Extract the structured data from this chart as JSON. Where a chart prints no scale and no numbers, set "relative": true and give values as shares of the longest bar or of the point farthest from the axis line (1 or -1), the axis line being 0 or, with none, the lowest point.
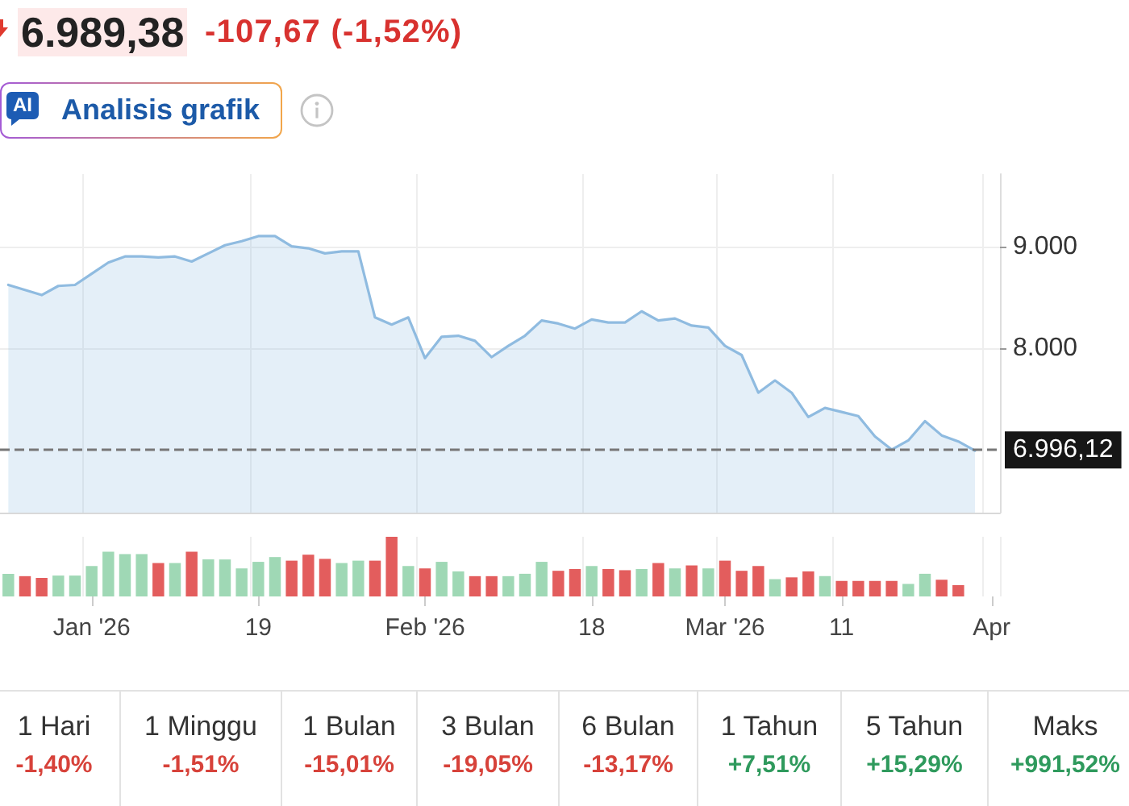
{
  "chart_data": [
    {
      "type": "area",
      "title": "6.989,38",
      "subtitle": "-107,67 (-1,52%)",
      "annotations": [
        "AI",
        "Analisis grafik"
      ],
      "categories": [
        null,
        null,
        null,
        null,
        null,
        "Jan '26",
        null,
        null,
        null,
        null,
        null,
        null,
        null,
        null,
        null,
        "19",
        null,
        null,
        null,
        null,
        null,
        null,
        null,
        null,
        null,
        "Feb '26",
        null,
        null,
        null,
        null,
        null,
        null,
        null,
        null,
        null,
        "18",
        null,
        null,
        null,
        null,
        null,
        null,
        null,
        "Mar '26",
        null,
        null,
        null,
        null,
        null,
        null,
        "11",
        null,
        null,
        null,
        null,
        null,
        null,
        null,
        null,
        "Apr"
      ],
      "series": [
        {
          "color": "#8fbbe0",
          "values": [
            8620,
            8570,
            8520,
            8610,
            8620,
            8730,
            8840,
            8900,
            8900,
            8890,
            8900,
            8850,
            8930,
            9010,
            9050,
            9100,
            9100,
            9000,
            8980,
            8930,
            8950,
            8950,
            8300,
            8230,
            8300,
            7900,
            8110,
            8120,
            8070,
            7910,
            8020,
            8120,
            8270,
            8240,
            8190,
            8280,
            8250,
            8250,
            8360,
            8270,
            8290,
            8220,
            8200,
            8020,
            7930,
            7560,
            7680,
            7560,
            7320,
            7410,
            7370,
            7330,
            7130,
            7000,
            7090,
            7280,
            7140,
            7080,
            6990,
            null
          ]
        }
      ],
      "ylim": [
        6380,
        9710
      ],
      "yticks": [
        {
          "value": 8000,
          "label": "8.000"
        },
        {
          "value": 9000,
          "label": "9.000"
        }
      ],
      "ref_lines": [
        {
          "axis": "y",
          "value": 6996.12,
          "label": "6.996,12",
          "color": "#777777",
          "line_style": "dashed"
        }
      ],
      "grid": true
    },
    {
      "type": "bar",
      "relative": true,
      "categories": [
        null,
        null,
        null,
        null,
        null,
        null,
        null,
        null,
        null,
        null,
        null,
        null,
        null,
        null,
        null,
        null,
        null,
        null,
        null,
        null,
        null,
        null,
        null,
        null,
        null,
        null,
        null,
        null,
        null,
        null,
        null,
        null,
        null,
        null,
        null,
        null,
        null,
        null,
        null,
        null,
        null,
        null,
        null,
        null,
        null,
        null,
        null,
        null,
        null,
        null,
        null,
        null,
        null,
        null,
        null,
        null,
        null,
        null,
        null,
        null
      ],
      "values": [
        0.38,
        0.34,
        0.31,
        0.35,
        0.35,
        0.51,
        0.75,
        0.71,
        0.71,
        0.56,
        0.56,
        0.75,
        0.62,
        0.62,
        0.47,
        0.58,
        0.66,
        0.6,
        0.7,
        0.63,
        0.56,
        0.6,
        0.6,
        1,
        0.51,
        0.47,
        0.58,
        0.42,
        0.34,
        0.34,
        0.34,
        0.38,
        0.58,
        0.43,
        0.46,
        0.51,
        0.46,
        0.44,
        0.46,
        0.56,
        0.47,
        0.52,
        0.47,
        0.6,
        0.43,
        0.51,
        0.29,
        0.32,
        0.42,
        0.34,
        0.26,
        0.26,
        0.26,
        0.26,
        0.21,
        0.38,
        0.28,
        0.19,
        null,
        null
      ],
      "colors": [
        "#9fd8b5",
        "#e35d5d",
        "#e35d5d",
        "#9fd8b5",
        "#9fd8b5",
        "#9fd8b5",
        "#9fd8b5",
        "#9fd8b5",
        "#9fd8b5",
        "#e35d5d",
        "#9fd8b5",
        "#e35d5d",
        "#9fd8b5",
        "#9fd8b5",
        "#9fd8b5",
        "#9fd8b5",
        "#9fd8b5",
        "#e35d5d",
        "#e35d5d",
        "#e35d5d",
        "#9fd8b5",
        "#9fd8b5",
        "#e35d5d",
        "#e35d5d",
        "#9fd8b5",
        "#e35d5d",
        "#9fd8b5",
        "#9fd8b5",
        "#e35d5d",
        "#e35d5d",
        "#9fd8b5",
        "#9fd8b5",
        "#9fd8b5",
        "#e35d5d",
        "#e35d5d",
        "#9fd8b5",
        "#e35d5d",
        "#e35d5d",
        "#9fd8b5",
        "#e35d5d",
        "#9fd8b5",
        "#e35d5d",
        "#9fd8b5",
        "#e35d5d",
        "#e35d5d",
        "#e35d5d",
        "#9fd8b5",
        "#e35d5d",
        "#e35d5d",
        "#9fd8b5",
        "#e35d5d",
        "#e35d5d",
        "#e35d5d",
        "#e35d5d",
        "#9fd8b5",
        "#9fd8b5",
        "#e35d5d",
        "#e35d5d",
        null,
        null
      ],
      "grid": "x"
    },
    {
      "type": "other",
      "categories": [
        "1 Hari",
        "1 Minggu",
        "1 Bulan",
        "3 Bulan",
        "6 Bulan",
        "1 Tahun",
        "5 Tahun",
        "Maks"
      ],
      "value_labels": [
        "-1,40%",
        "-1,51%",
        "-15,01%",
        "-19,05%",
        "-13,17%",
        "+7,51%",
        "+15,29%",
        "+991,52%"
      ],
      "colors": [
        "#d7423a",
        "#d7423a",
        "#d7423a",
        "#d7423a",
        "#d7423a",
        "#2f9a5d",
        "#2f9a5d",
        "#2f9a5d"
      ]
    }
  ]
}
